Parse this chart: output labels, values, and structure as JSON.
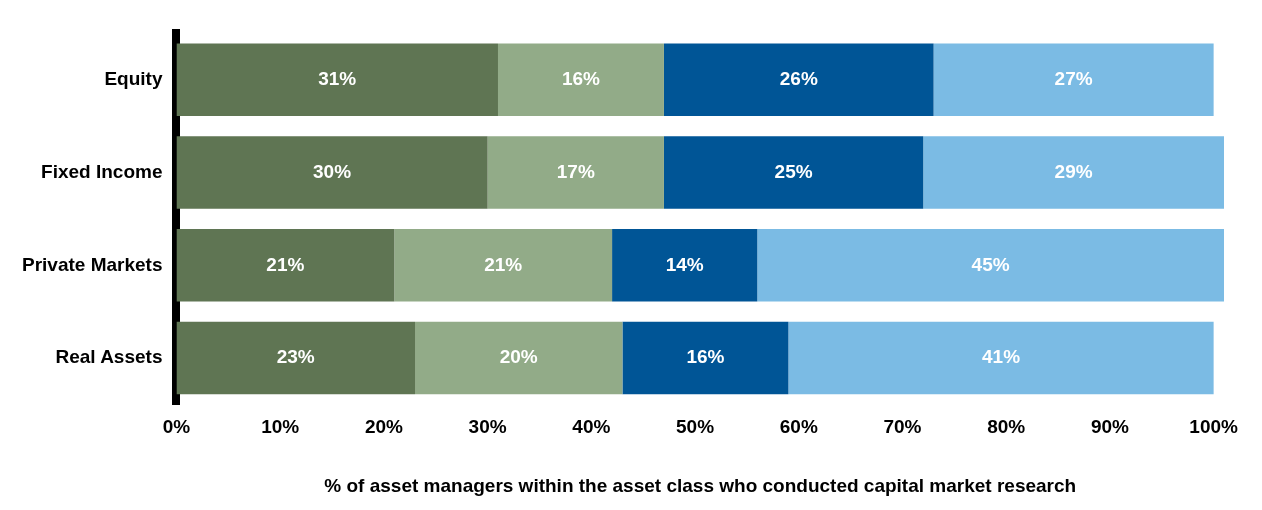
{
  "chart_data": {
    "type": "bar",
    "orientation": "horizontal",
    "stacked": true,
    "xlabel": "% of asset managers within the asset class who conducted capital market research",
    "categories": [
      "Equity",
      "Fixed Income",
      "Private Markets",
      "Real Assets"
    ],
    "series": [
      {
        "color": "#5f7553",
        "values": [
          31,
          30,
          21,
          23
        ],
        "value_labels": [
          "31%",
          "30%",
          "21%",
          "23%"
        ]
      },
      {
        "color": "#92ab88",
        "values": [
          16,
          17,
          21,
          20
        ],
        "value_labels": [
          "16%",
          "17%",
          "21%",
          "20%"
        ]
      },
      {
        "color": "#005596",
        "values": [
          26,
          25,
          14,
          16
        ],
        "value_labels": [
          "26%",
          "25%",
          "14%",
          "16%"
        ]
      },
      {
        "color": "#7bbbe4",
        "values": [
          27,
          29,
          45,
          41
        ],
        "value_labels": [
          "27%",
          "29%",
          "45%",
          "41%"
        ]
      }
    ],
    "xlim": [
      0,
      101
    ],
    "xticks": [
      {
        "value": 0,
        "label": "0%"
      },
      {
        "value": 10,
        "label": "10%"
      },
      {
        "value": 20,
        "label": "20%"
      },
      {
        "value": 30,
        "label": "30%"
      },
      {
        "value": 40,
        "label": "40%"
      },
      {
        "value": 50,
        "label": "50%"
      },
      {
        "value": 60,
        "label": "60%"
      },
      {
        "value": 70,
        "label": "70%"
      },
      {
        "value": 80,
        "label": "80%"
      },
      {
        "value": 90,
        "label": "90%"
      },
      {
        "value": 100,
        "label": "100%"
      }
    ],
    "grid": false,
    "legend": false
  }
}
